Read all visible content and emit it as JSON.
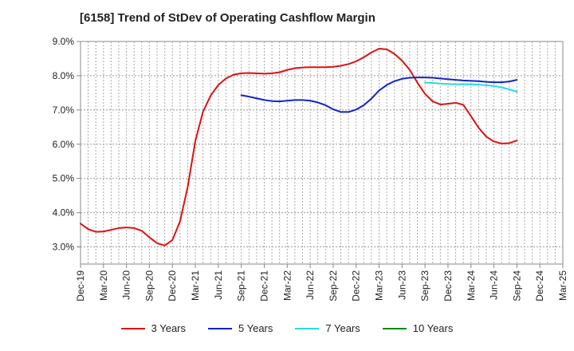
{
  "chart_data": {
    "type": "line",
    "title": "[6158]  Trend of StDev of Operating Cashflow Margin",
    "xlabel": "",
    "ylabel": "",
    "ylim": [
      2.5,
      9.0
    ],
    "y_ticks": [
      "3.0%",
      "4.0%",
      "5.0%",
      "6.0%",
      "7.0%",
      "8.0%",
      "9.0%"
    ],
    "y_tick_values": [
      3.0,
      4.0,
      5.0,
      6.0,
      7.0,
      8.0,
      9.0
    ],
    "x_tick_labels": [
      "Dec-19",
      "Mar-20",
      "Jun-20",
      "Sep-20",
      "Dec-20",
      "Mar-21",
      "Jun-21",
      "Sep-21",
      "Dec-21",
      "Mar-22",
      "Jun-22",
      "Sep-22",
      "Dec-22",
      "Mar-23",
      "Jun-23",
      "Sep-23",
      "Dec-23",
      "Mar-24",
      "Jun-24",
      "Sep-24",
      "Dec-24",
      "Mar-25"
    ],
    "grid": true,
    "legend_position": "bottom",
    "series": [
      {
        "name": "3 Years",
        "color": "#dd1111",
        "x": [
          "Dec-19",
          "Jan-20",
          "Feb-20",
          "Mar-20",
          "Apr-20",
          "May-20",
          "Jun-20",
          "Jul-20",
          "Aug-20",
          "Sep-20",
          "Oct-20",
          "Nov-20",
          "Dec-20",
          "Jan-21",
          "Feb-21",
          "Mar-21",
          "Apr-21",
          "May-21",
          "Jun-21",
          "Jul-21",
          "Aug-21",
          "Sep-21",
          "Oct-21",
          "Nov-21",
          "Dec-21",
          "Jan-22",
          "Feb-22",
          "Mar-22",
          "Apr-22",
          "May-22",
          "Jun-22",
          "Jul-22",
          "Aug-22",
          "Sep-22",
          "Oct-22",
          "Nov-22",
          "Dec-22",
          "Jan-23",
          "Feb-23",
          "Mar-23",
          "Apr-23",
          "May-23",
          "Jun-23",
          "Jul-23",
          "Aug-23",
          "Sep-23",
          "Oct-23",
          "Nov-23",
          "Dec-23",
          "Jan-24",
          "Feb-24",
          "Mar-24",
          "Apr-24",
          "May-24",
          "Jun-24",
          "Jul-24",
          "Aug-24",
          "Sep-24"
        ],
        "values": [
          3.68,
          3.52,
          3.44,
          3.45,
          3.5,
          3.55,
          3.57,
          3.55,
          3.47,
          3.28,
          3.11,
          3.04,
          3.2,
          3.75,
          4.75,
          6.1,
          6.95,
          7.42,
          7.73,
          7.92,
          8.03,
          8.07,
          8.08,
          8.07,
          8.06,
          8.07,
          8.1,
          8.17,
          8.22,
          8.24,
          8.25,
          8.25,
          8.25,
          8.26,
          8.29,
          8.34,
          8.42,
          8.54,
          8.68,
          8.79,
          8.77,
          8.64,
          8.44,
          8.17,
          7.8,
          7.47,
          7.25,
          7.16,
          7.18,
          7.21,
          7.15,
          6.82,
          6.48,
          6.22,
          6.08,
          6.02,
          6.03,
          6.11
        ]
      },
      {
        "name": "5 Years",
        "color": "#1122cc",
        "x": [
          "Sep-21",
          "Oct-21",
          "Nov-21",
          "Dec-21",
          "Jan-22",
          "Feb-22",
          "Mar-22",
          "Apr-22",
          "May-22",
          "Jun-22",
          "Jul-22",
          "Aug-22",
          "Sep-22",
          "Oct-22",
          "Nov-22",
          "Dec-22",
          "Jan-23",
          "Feb-23",
          "Mar-23",
          "Apr-23",
          "May-23",
          "Jun-23",
          "Jul-23",
          "Aug-23",
          "Sep-23",
          "Oct-23",
          "Nov-23",
          "Dec-23",
          "Jan-24",
          "Feb-24",
          "Mar-24",
          "Apr-24",
          "May-24",
          "Jun-24",
          "Jul-24",
          "Aug-24",
          "Sep-24"
        ],
        "values": [
          7.43,
          7.39,
          7.34,
          7.29,
          7.26,
          7.25,
          7.27,
          7.29,
          7.29,
          7.27,
          7.22,
          7.14,
          7.02,
          6.94,
          6.94,
          7.01,
          7.14,
          7.33,
          7.57,
          7.73,
          7.84,
          7.91,
          7.94,
          7.95,
          7.95,
          7.94,
          7.92,
          7.9,
          7.88,
          7.86,
          7.85,
          7.84,
          7.82,
          7.81,
          7.81,
          7.83,
          7.88
        ]
      },
      {
        "name": "7 Years",
        "color": "#22dddd",
        "x": [
          "Sep-23",
          "Oct-23",
          "Nov-23",
          "Dec-23",
          "Jan-24",
          "Feb-24",
          "Mar-24",
          "Apr-24",
          "May-24",
          "Jun-24",
          "Jul-24",
          "Aug-24",
          "Sep-24"
        ],
        "values": [
          7.8,
          7.79,
          7.77,
          7.76,
          7.75,
          7.75,
          7.75,
          7.74,
          7.72,
          7.7,
          7.66,
          7.6,
          7.53
        ]
      },
      {
        "name": "10 Years",
        "color": "#118811",
        "x": [],
        "values": []
      }
    ]
  }
}
